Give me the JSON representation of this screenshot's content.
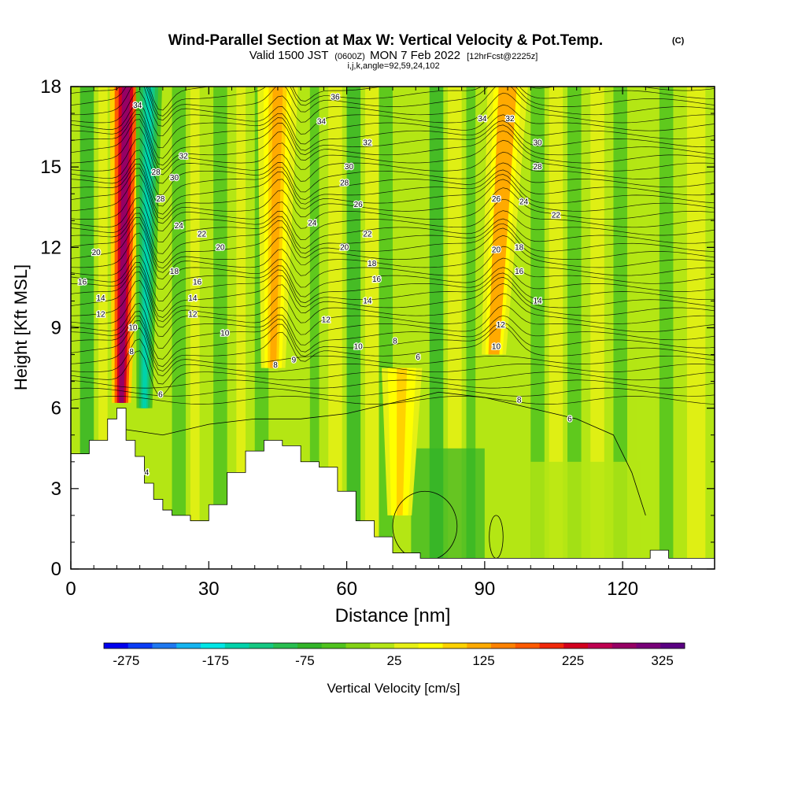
{
  "chart_data": {
    "type": "heatmap",
    "title": "Wind-Parallel Section at Max W: Vertical Velocity & Pot.Temp.",
    "title_mark": "(C)",
    "subtitle_pre": "Valid 1500 JST",
    "subtitle_utc": "(0600Z)",
    "subtitle_post": "MON 7 Feb 2022",
    "subtitle_fcst": "[12hrFcst@2225z]",
    "subtitle2": "i,j,k,angle=92,59,24,102",
    "xlabel": "Distance [nm]",
    "ylabel": "Height [Kft MSL]",
    "xlim": [
      0,
      140
    ],
    "ylim": [
      0,
      18
    ],
    "xticks": [
      "0",
      "30",
      "60",
      "90",
      "120"
    ],
    "xtick_values": [
      0,
      30,
      60,
      90,
      120
    ],
    "yticks": [
      "0",
      "3",
      "6",
      "9",
      "12",
      "15",
      "18"
    ],
    "ytick_values": [
      0,
      3,
      6,
      9,
      12,
      15,
      18
    ],
    "colorbar": {
      "label": "Vertical Velocity [cm/s]",
      "tick_labels": [
        "-275",
        "-175",
        "-75",
        "25",
        "125",
        "225",
        "325"
      ],
      "tick_values": [
        -275,
        -175,
        -75,
        25,
        125,
        225,
        325
      ],
      "range": [
        -300,
        350
      ],
      "colors": [
        "#0000ee",
        "#0a3cf5",
        "#1e78f0",
        "#14b4f0",
        "#00e6e6",
        "#00d2aa",
        "#14c882",
        "#28be50",
        "#32b428",
        "#50c31e",
        "#82d214",
        "#b4e614",
        "#e6f014",
        "#ffff00",
        "#ffd200",
        "#ffaa00",
        "#ff8200",
        "#ff5a00",
        "#f0280a",
        "#d2001e",
        "#be0050",
        "#960064",
        "#780078",
        "#5a0082"
      ]
    },
    "vertical_velocity_features": [
      {
        "label": "strong updraft",
        "x": 12,
        "y_bottom": 6.2,
        "y_top": 18,
        "value": 325
      },
      {
        "label": "downdraft",
        "x": 17,
        "y_bottom": 6.0,
        "y_top": 18,
        "value": -175
      },
      {
        "label": "updraft",
        "x": 45,
        "y_bottom": 7.5,
        "y_top": 18,
        "value": 125
      },
      {
        "label": "updraft",
        "x": 72,
        "y_bottom": 2.0,
        "y_top": 7.5,
        "value": 100
      },
      {
        "label": "updraft",
        "x": 95,
        "y_bottom": 8.0,
        "y_top": 18,
        "value": 150
      }
    ],
    "terrain_profile": {
      "x": [
        0,
        4,
        8,
        10,
        12,
        14,
        16,
        18,
        20,
        22,
        26,
        30,
        34,
        38,
        42,
        46,
        50,
        54,
        58,
        62,
        66,
        70,
        76,
        90,
        110,
        124,
        126,
        130,
        140
      ],
      "height": [
        4.3,
        4.8,
        5.6,
        6.0,
        4.8,
        4.2,
        3.2,
        2.6,
        2.2,
        2.0,
        1.8,
        2.4,
        3.6,
        4.4,
        4.8,
        4.6,
        4.0,
        3.8,
        2.9,
        1.8,
        1.2,
        0.6,
        0.4,
        0.4,
        0.4,
        0.4,
        0.7,
        0.4,
        0.4
      ]
    },
    "pot_temp_contour_labels": [
      "4",
      "6",
      "8",
      "9",
      "10",
      "12",
      "14",
      "16",
      "18",
      "20",
      "22",
      "24",
      "26",
      "28",
      "30",
      "32",
      "34",
      "36"
    ],
    "contour_label_points": [
      {
        "text": "34",
        "x": 14.5,
        "y": 17.3
      },
      {
        "text": "28",
        "x": 18.5,
        "y": 14.8
      },
      {
        "text": "28",
        "x": 19.5,
        "y": 13.8
      },
      {
        "text": "30",
        "x": 22.5,
        "y": 14.6
      },
      {
        "text": "32",
        "x": 24.5,
        "y": 15.4
      },
      {
        "text": "24",
        "x": 23.5,
        "y": 12.8
      },
      {
        "text": "22",
        "x": 28.5,
        "y": 12.5
      },
      {
        "text": "20",
        "x": 32.5,
        "y": 12.0
      },
      {
        "text": "20",
        "x": 5.5,
        "y": 11.8
      },
      {
        "text": "16",
        "x": 2.5,
        "y": 10.7
      },
      {
        "text": "14",
        "x": 6.5,
        "y": 10.1
      },
      {
        "text": "12",
        "x": 6.5,
        "y": 9.5
      },
      {
        "text": "18",
        "x": 22.5,
        "y": 11.1
      },
      {
        "text": "16",
        "x": 27.5,
        "y": 10.7
      },
      {
        "text": "14",
        "x": 26.5,
        "y": 10.1
      },
      {
        "text": "12",
        "x": 26.5,
        "y": 9.5
      },
      {
        "text": "10",
        "x": 33.5,
        "y": 8.8
      },
      {
        "text": "10",
        "x": 13.5,
        "y": 9.0
      },
      {
        "text": "8",
        "x": 13.2,
        "y": 8.1
      },
      {
        "text": "6",
        "x": 19.5,
        "y": 6.5
      },
      {
        "text": "4",
        "x": 16.5,
        "y": 3.6
      },
      {
        "text": "36",
        "x": 57.5,
        "y": 17.6
      },
      {
        "text": "34",
        "x": 54.5,
        "y": 16.7
      },
      {
        "text": "32",
        "x": 64.5,
        "y": 15.9
      },
      {
        "text": "30",
        "x": 60.5,
        "y": 15.0
      },
      {
        "text": "28",
        "x": 59.5,
        "y": 14.4
      },
      {
        "text": "26",
        "x": 62.5,
        "y": 13.6
      },
      {
        "text": "24",
        "x": 52.5,
        "y": 12.9
      },
      {
        "text": "22",
        "x": 64.5,
        "y": 12.5
      },
      {
        "text": "20",
        "x": 59.5,
        "y": 12.0
      },
      {
        "text": "18",
        "x": 65.5,
        "y": 11.4
      },
      {
        "text": "16",
        "x": 66.5,
        "y": 10.8
      },
      {
        "text": "14",
        "x": 64.5,
        "y": 10.0
      },
      {
        "text": "12",
        "x": 55.5,
        "y": 9.3
      },
      {
        "text": "10",
        "x": 62.5,
        "y": 8.3
      },
      {
        "text": "8",
        "x": 70.5,
        "y": 8.5
      },
      {
        "text": "6",
        "x": 75.5,
        "y": 7.9
      },
      {
        "text": "8",
        "x": 44.5,
        "y": 7.6
      },
      {
        "text": "9",
        "x": 48.5,
        "y": 7.8
      },
      {
        "text": "34",
        "x": 89.5,
        "y": 16.8
      },
      {
        "text": "32",
        "x": 95.5,
        "y": 16.8
      },
      {
        "text": "30",
        "x": 101.5,
        "y": 15.9
      },
      {
        "text": "28",
        "x": 101.5,
        "y": 15.0
      },
      {
        "text": "26",
        "x": 92.5,
        "y": 13.8
      },
      {
        "text": "24",
        "x": 98.5,
        "y": 13.7
      },
      {
        "text": "22",
        "x": 105.5,
        "y": 13.2
      },
      {
        "text": "20",
        "x": 92.5,
        "y": 11.9
      },
      {
        "text": "18",
        "x": 97.5,
        "y": 12.0
      },
      {
        "text": "16",
        "x": 97.5,
        "y": 11.1
      },
      {
        "text": "14",
        "x": 101.5,
        "y": 10.0
      },
      {
        "text": "12",
        "x": 93.5,
        "y": 9.1
      },
      {
        "text": "10",
        "x": 92.5,
        "y": 8.3
      },
      {
        "text": "8",
        "x": 97.5,
        "y": 6.3
      },
      {
        "text": "6",
        "x": 108.5,
        "y": 5.6
      }
    ]
  }
}
